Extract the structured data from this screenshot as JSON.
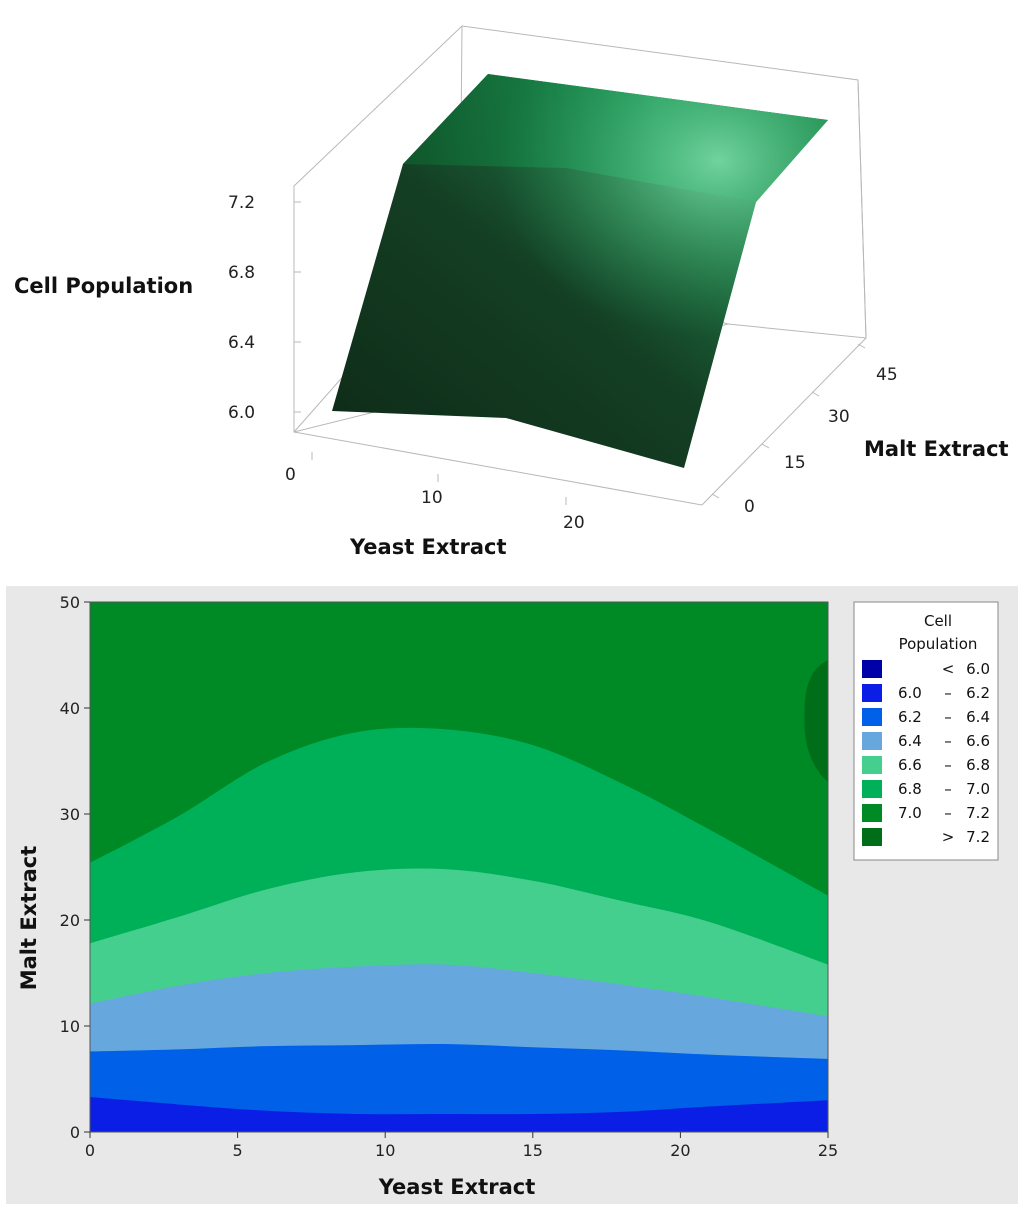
{
  "chart_data": [
    {
      "type": "surface",
      "zlabel": "Cell Population",
      "xlabel": "Yeast Extract",
      "ylabel": "Malt Extract",
      "z_ticks": [
        "6.0",
        "6.4",
        "6.8",
        "7.2"
      ],
      "x_ticks": [
        "0",
        "10",
        "20"
      ],
      "y_ticks": [
        "0",
        "15",
        "30",
        "45"
      ],
      "x_range": [
        0,
        25
      ],
      "y_range": [
        0,
        50
      ],
      "z_range": [
        5.8,
        7.4
      ],
      "color": "#1e7a44"
    },
    {
      "type": "contour",
      "xlabel": "Yeast Extract",
      "ylabel": "Malt Extract",
      "x_ticks": [
        "0",
        "5",
        "10",
        "15",
        "20",
        "25"
      ],
      "y_ticks": [
        "0",
        "10",
        "20",
        "30",
        "40",
        "50"
      ],
      "xlim": [
        0,
        25
      ],
      "ylim": [
        0,
        50
      ],
      "legend": {
        "title_line1": "Cell",
        "title_line2": "Population",
        "position": "right",
        "items": [
          {
            "lo": "",
            "sep": "<",
            "hi": "6.0",
            "color": "#0000a8"
          },
          {
            "lo": "6.0",
            "sep": "–",
            "hi": "6.2",
            "color": "#0a1ee6"
          },
          {
            "lo": "6.2",
            "sep": "–",
            "hi": "6.4",
            "color": "#0060e8"
          },
          {
            "lo": "6.4",
            "sep": "–",
            "hi": "6.6",
            "color": "#66a8de"
          },
          {
            "lo": "6.6",
            "sep": "–",
            "hi": "6.8",
            "color": "#45cf8e"
          },
          {
            "lo": "6.8",
            "sep": "–",
            "hi": "7.0",
            "color": "#00b058"
          },
          {
            "lo": "7.0",
            "sep": "–",
            "hi": "7.2",
            "color": "#008a26"
          },
          {
            "lo": "",
            "sep": ">",
            "hi": "7.2",
            "color": "#006e18"
          }
        ]
      },
      "boundaries": {
        "x": [
          0,
          3,
          6,
          9,
          12,
          15,
          18,
          21,
          25
        ],
        "b6_0": [
          3.3,
          2.6,
          2.0,
          1.7,
          1.7,
          1.7,
          1.9,
          2.4,
          3.0
        ],
        "b6_2": [
          7.6,
          7.8,
          8.1,
          8.2,
          8.3,
          8.0,
          7.7,
          7.3,
          6.9
        ],
        "b6_4": [
          12.1,
          13.8,
          15.0,
          15.6,
          15.8,
          15.0,
          13.9,
          12.7,
          10.9
        ],
        "b6_6": [
          17.8,
          20.3,
          22.9,
          24.5,
          24.8,
          23.7,
          21.8,
          19.8,
          15.8
        ],
        "b6_8": [
          25.4,
          29.8,
          34.9,
          37.7,
          38.0,
          36.5,
          32.9,
          28.5,
          22.3
        ],
        "b7_0": [
          50,
          50,
          50,
          50,
          50,
          50,
          50,
          50,
          50
        ],
        "peak_region": {
          "x_left": 24.2,
          "y_low": 33.0,
          "y_high": 44.5
        }
      }
    }
  ]
}
